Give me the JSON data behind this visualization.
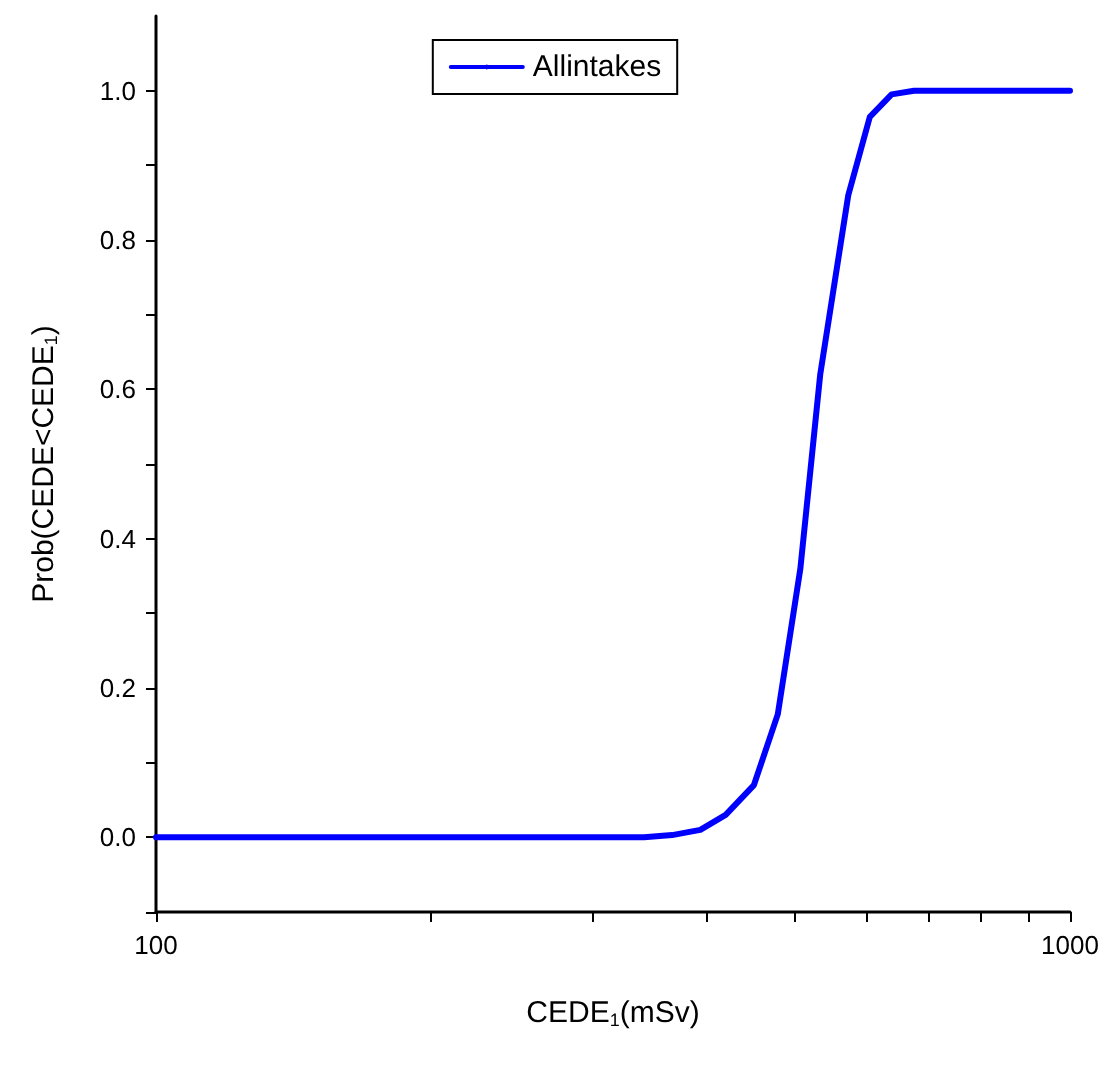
{
  "chart_data": {
    "type": "line",
    "xlabel": "CEDE$_{1}$(mSv)",
    "ylabel": "Prob(CEDE<CEDE$_{1}$)",
    "x": [
      100,
      342,
      367,
      394,
      420,
      451,
      479,
      507,
      533,
      572,
      604,
      638,
      675,
      1000
    ],
    "series": [
      {
        "name": "Allintakes",
        "color": "#0000ff",
        "values": [
          0,
          0,
          0.003,
          0.01,
          0.03,
          0.07,
          0.165,
          0.36,
          0.62,
          0.86,
          0.965,
          0.995,
          1.0,
          1.0
        ]
      }
    ],
    "log": "x",
    "xlim": [
      100,
      1000
    ],
    "xticks": [
      100,
      {
        "value": 200,
        "label": null
      },
      {
        "value": 300,
        "label": null
      },
      {
        "value": 400,
        "label": null
      },
      {
        "value": 500,
        "label": null
      },
      {
        "value": 600,
        "label": null
      },
      {
        "value": 700,
        "label": null
      },
      {
        "value": 800,
        "label": null
      },
      {
        "value": 900,
        "label": null
      },
      1000
    ],
    "ylim": [
      -0.1,
      1.1
    ],
    "yticks": [
      {
        "value": -0.1,
        "label": null
      },
      {
        "value": 0,
        "label": "0.0"
      },
      {
        "value": 0.1,
        "label": null
      },
      {
        "value": 0.2,
        "label": "0.2"
      },
      {
        "value": 0.3,
        "label": null
      },
      {
        "value": 0.4,
        "label": "0.4"
      },
      {
        "value": 0.5,
        "label": null
      },
      {
        "value": 0.6,
        "label": "0.6"
      },
      {
        "value": 0.7,
        "label": null
      },
      {
        "value": 0.8,
        "label": "0.8"
      },
      {
        "value": 0.9,
        "label": null
      },
      {
        "value": 1,
        "label": "1.0"
      }
    ],
    "grid": false,
    "legend": "top",
    "marker": "none",
    "line_style": "solid"
  }
}
